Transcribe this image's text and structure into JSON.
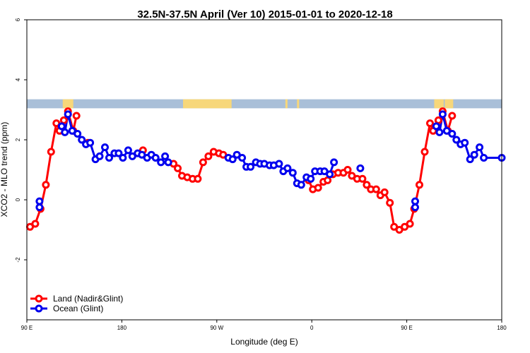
{
  "chart_data": {
    "type": "line",
    "title": "32.5N-37.5N April (Ver 10)   2015-01-01 to 2020-12-18",
    "xlabel": "Longitude (deg E)",
    "ylabel": "XCO2 - MLO trend (ppm)",
    "xlim": [
      90,
      540
    ],
    "ylim": [
      -4,
      6
    ],
    "x_ticks": [
      {
        "value": 90,
        "label": "90 E"
      },
      {
        "value": 180,
        "label": "180"
      },
      {
        "value": 270,
        "label": "90 W"
      },
      {
        "value": 360,
        "label": "0"
      },
      {
        "value": 450,
        "label": "90 E"
      },
      {
        "value": 540,
        "label": "180"
      }
    ],
    "y_ticks": [
      {
        "value": -2,
        "label": "-2"
      },
      {
        "value": 0,
        "label": "0"
      },
      {
        "value": 2,
        "label": "2"
      },
      {
        "value": 4,
        "label": "4"
      },
      {
        "value": 6,
        "label": "6"
      }
    ],
    "land_strip": {
      "y_range": [
        3.05,
        3.35
      ],
      "ocean_color": "#a9bfd8",
      "land_color": "#f7d77a",
      "land_segments": [
        [
          124,
          132
        ],
        [
          131,
          134
        ],
        [
          238,
          284
        ],
        [
          335,
          337
        ],
        [
          346,
          348
        ],
        [
          476,
          485
        ],
        [
          486,
          494
        ]
      ]
    },
    "series": [
      {
        "name": "Land (Nadir&Glint)",
        "color": "#ff0000",
        "segments": [
          [
            [
              93,
              -0.9
            ],
            [
              98,
              -0.8
            ],
            [
              103,
              -0.3
            ],
            [
              108,
              0.5
            ],
            [
              113,
              1.6
            ],
            [
              118,
              2.55
            ],
            [
              121,
              2.3
            ],
            [
              125,
              2.65
            ],
            [
              129,
              2.95
            ],
            [
              134,
              2.3
            ],
            [
              137,
              2.8
            ]
          ],
          [
            [
              148,
              1.9
            ]
          ],
          [
            [
              200,
              1.65
            ]
          ],
          [
            [
              229,
              1.2
            ],
            [
              233,
              1.05
            ],
            [
              237,
              0.8
            ],
            [
              242,
              0.75
            ],
            [
              247,
              0.7
            ],
            [
              252,
              0.7
            ],
            [
              257,
              1.25
            ],
            [
              262,
              1.45
            ],
            [
              267,
              1.6
            ],
            [
              272,
              1.55
            ],
            [
              276,
              1.5
            ]
          ],
          [
            [
              357,
              0.65
            ],
            [
              361,
              0.35
            ],
            [
              366,
              0.4
            ],
            [
              371,
              0.6
            ],
            [
              375,
              0.65
            ],
            [
              380,
              0.85
            ],
            [
              385,
              0.9
            ],
            [
              390,
              0.9
            ],
            [
              394,
              1.0
            ]
          ],
          [
            [
              398,
              0.8
            ],
            [
              403,
              0.7
            ],
            [
              408,
              0.7
            ],
            [
              412,
              0.5
            ],
            [
              416,
              0.35
            ],
            [
              421,
              0.35
            ],
            [
              425,
              0.15
            ],
            [
              429,
              0.25
            ],
            [
              434,
              -0.1
            ],
            [
              438,
              -0.9
            ],
            [
              443,
              -1.0
            ],
            [
              448,
              -0.9
            ],
            [
              453,
              -0.8
            ],
            [
              457,
              -0.3
            ],
            [
              462,
              0.5
            ],
            [
              467,
              1.6
            ],
            [
              472,
              2.55
            ],
            [
              475,
              2.3
            ],
            [
              480,
              2.65
            ],
            [
              484,
              2.95
            ],
            [
              489,
              2.3
            ],
            [
              493,
              2.8
            ]
          ]
        ]
      },
      {
        "name": "Ocean (Glint)",
        "color": "#0000ee",
        "segments": [
          [
            [
              102,
              -0.05
            ],
            [
              102,
              -0.25
            ]
          ],
          [
            [
              123,
              2.45
            ],
            [
              126,
              2.25
            ],
            [
              129,
              2.85
            ],
            [
              133,
              2.3
            ],
            [
              138,
              2.2
            ],
            [
              142,
              2.0
            ],
            [
              146,
              1.85
            ],
            [
              150,
              1.9
            ],
            [
              155,
              1.35
            ],
            [
              159,
              1.45
            ],
            [
              164,
              1.75
            ],
            [
              168,
              1.4
            ],
            [
              173,
              1.55
            ],
            [
              177,
              1.55
            ],
            [
              181,
              1.4
            ],
            [
              186,
              1.65
            ],
            [
              190,
              1.45
            ],
            [
              195,
              1.55
            ],
            [
              199,
              1.5
            ],
            [
              204,
              1.4
            ],
            [
              208,
              1.5
            ],
            [
              212,
              1.4
            ],
            [
              217,
              1.25
            ],
            [
              221,
              1.45
            ],
            [
              224,
              1.25
            ]
          ],
          [
            [
              281,
              1.4
            ],
            [
              285,
              1.35
            ],
            [
              289,
              1.5
            ],
            [
              294,
              1.4
            ],
            [
              298,
              1.1
            ],
            [
              302,
              1.1
            ],
            [
              307,
              1.25
            ],
            [
              311,
              1.2
            ],
            [
              315,
              1.2
            ],
            [
              320,
              1.15
            ],
            [
              324,
              1.15
            ],
            [
              329,
              1.2
            ],
            [
              333,
              0.95
            ],
            [
              337,
              1.05
            ],
            [
              342,
              0.9
            ],
            [
              346,
              0.55
            ],
            [
              350,
              0.5
            ],
            [
              355,
              0.75
            ],
            [
              359,
              0.7
            ],
            [
              363,
              0.95
            ],
            [
              368,
              0.95
            ],
            [
              372,
              0.95
            ],
            [
              377,
              0.85
            ],
            [
              381,
              1.25
            ]
          ],
          [
            [
              406,
              1.05
            ]
          ],
          [
            [
              458,
              -0.05
            ],
            [
              458,
              -0.25
            ]
          ],
          [
            [
              478,
              2.45
            ],
            [
              481,
              2.25
            ],
            [
              484,
              2.85
            ],
            [
              488,
              2.3
            ],
            [
              493,
              2.2
            ],
            [
              497,
              2.0
            ],
            [
              501,
              1.85
            ],
            [
              505,
              1.9
            ],
            [
              510,
              1.35
            ],
            [
              514,
              1.5
            ],
            [
              519,
              1.75
            ],
            [
              523,
              1.4
            ],
            [
              540,
              1.4
            ]
          ]
        ]
      }
    ],
    "legend": {
      "position": "bottom-left",
      "entries": [
        {
          "label": "Land (Nadir&Glint)",
          "color": "#ff0000"
        },
        {
          "label": "Ocean (Glint)",
          "color": "#0000ee"
        }
      ]
    },
    "grid": false
  }
}
